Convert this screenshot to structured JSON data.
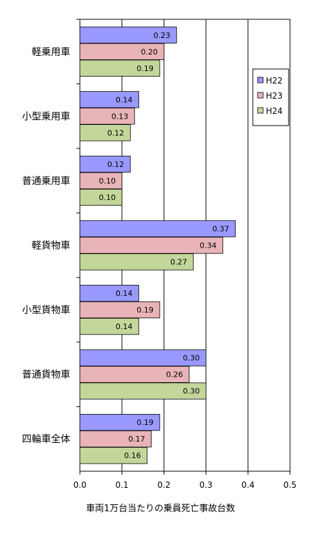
{
  "chart_data": {
    "type": "bar",
    "orientation": "horizontal",
    "categories": [
      "軽乗用車",
      "小型乗用車",
      "普通乗用車",
      "軽貨物車",
      "小型貨物車",
      "普通貨物車",
      "四輪車全体"
    ],
    "series": [
      {
        "name": "H22",
        "color": "#9999ff",
        "values": [
          0.23,
          0.14,
          0.12,
          0.37,
          0.14,
          0.3,
          0.19
        ],
        "labels": [
          "0.23",
          "0.14",
          "0.12",
          "0.37",
          "0.14",
          "0.30",
          "0.19"
        ]
      },
      {
        "name": "H23",
        "color": "#e8b4b8",
        "values": [
          0.2,
          0.13,
          0.1,
          0.34,
          0.19,
          0.26,
          0.17
        ],
        "labels": [
          "0.20",
          "0.13",
          "0.10",
          "0.34",
          "0.19",
          "0.26",
          "0.17"
        ]
      },
      {
        "name": "H24",
        "color": "#c4d79b",
        "values": [
          0.19,
          0.12,
          0.1,
          0.27,
          0.14,
          0.3,
          0.16
        ],
        "labels": [
          "0.19",
          "0.12",
          "0.10",
          "0.27",
          "0.14",
          "0.30",
          "0.16"
        ]
      }
    ],
    "xlim": [
      0,
      0.5
    ],
    "xticks": [
      "0.0",
      "0.1",
      "0.2",
      "0.3",
      "0.4",
      "0.5"
    ],
    "xlabel": "車両1万台当たりの乗員死亡事故台数",
    "ylabel": "",
    "title": "",
    "grid": "vertical",
    "legend_position": "right"
  }
}
